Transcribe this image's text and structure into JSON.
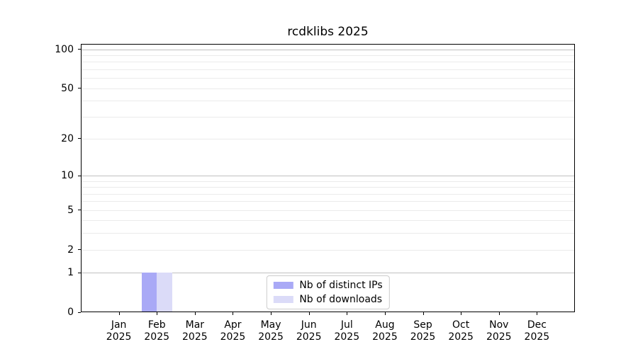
{
  "chart_data": {
    "type": "bar",
    "title": "rcdklibs 2025",
    "categories": [
      "Jan 2025",
      "Feb 2025",
      "Mar 2025",
      "Apr 2025",
      "May 2025",
      "Jun 2025",
      "Jul 2025",
      "Aug 2025",
      "Sep 2025",
      "Oct 2025",
      "Nov 2025",
      "Dec 2025"
    ],
    "x_tick_months": [
      "Jan",
      "Feb",
      "Mar",
      "Apr",
      "May",
      "Jun",
      "Jul",
      "Aug",
      "Sep",
      "Oct",
      "Nov",
      "Dec"
    ],
    "x_tick_year": "2025",
    "series": [
      {
        "name": "Nb of distinct IPs",
        "color": "#a9a9f6",
        "values": [
          0,
          1,
          0,
          0,
          0,
          0,
          0,
          0,
          0,
          0,
          0,
          0
        ]
      },
      {
        "name": "Nb of downloads",
        "color": "#dbdbf8",
        "values": [
          0,
          1,
          0,
          0,
          0,
          0,
          0,
          0,
          0,
          0,
          0,
          0
        ]
      }
    ],
    "xlabel": "",
    "ylabel": "",
    "y_axis": {
      "scale": "log1p",
      "ticks": [
        0,
        1,
        2,
        5,
        10,
        20,
        50,
        100
      ],
      "major_gridlines": [
        1,
        10,
        100
      ],
      "minor_gridlines": [
        2,
        3,
        4,
        5,
        6,
        7,
        8,
        9,
        20,
        30,
        40,
        50,
        60,
        70,
        80,
        90
      ],
      "ylim": [
        0,
        110
      ]
    },
    "grid": "horizontal",
    "legend_position": "lower center",
    "colors": {
      "major_grid": "#c0c0c0",
      "minor_grid": "#ebebeb",
      "spine": "#000000",
      "legend_border": "#cccccc",
      "background": "#ffffff"
    }
  }
}
